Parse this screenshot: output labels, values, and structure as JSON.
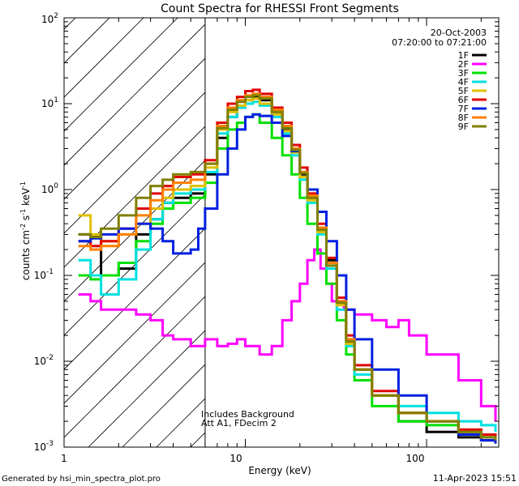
{
  "chart_data": {
    "type": "line",
    "title": "Count Spectra for RHESSI Front Segments",
    "xlabel": "Energy (keV)",
    "ylabel_main": "counts cm",
    "ylabel_sup1": "-2",
    "ylabel_s": " s",
    "ylabel_sup2": "-1",
    "ylabel_kev": " keV",
    "ylabel_sup3": "-1",
    "x_scale": "log",
    "y_scale": "log",
    "xlim": [
      1,
      250
    ],
    "ylim": [
      0.001,
      100
    ],
    "x_tick_labels": [
      "1",
      "10",
      "100"
    ],
    "y_tick_base": "10",
    "y_tick_exps": [
      "-3",
      "-2",
      "-1",
      "0",
      "1",
      "2"
    ],
    "date": "20-Oct-2003",
    "time_range": "07:20:00 to 07:21:00",
    "annotation_line1": "Includes Background",
    "annotation_line2": "Att A1, FDecim  2",
    "footer_left": "Generated by hsi_min_spectra_plot.pro",
    "footer_right": "11-Apr-2023 15:51",
    "attenuator_edge_kev": 6,
    "series": [
      {
        "name": "1F",
        "color": "#000000",
        "values": [
          [
            1.2,
            0.3
          ],
          [
            1.4,
            0.28
          ],
          [
            1.6,
            0.1
          ],
          [
            2,
            0.12
          ],
          [
            2.5,
            0.3
          ],
          [
            3,
            0.45
          ],
          [
            3.5,
            0.7
          ],
          [
            4,
            0.8
          ],
          [
            5,
            0.9
          ],
          [
            6,
            1.5
          ],
          [
            7,
            4
          ],
          [
            8,
            7
          ],
          [
            9,
            9
          ],
          [
            10,
            11
          ],
          [
            11,
            12
          ],
          [
            12,
            11
          ],
          [
            14,
            8
          ],
          [
            16,
            5
          ],
          [
            18,
            2.8
          ],
          [
            20,
            1.5
          ],
          [
            22,
            0.8
          ],
          [
            25,
            0.35
          ],
          [
            28,
            0.15
          ],
          [
            32,
            0.05
          ],
          [
            36,
            0.018
          ],
          [
            40,
            0.008
          ],
          [
            50,
            0.004
          ],
          [
            70,
            0.002
          ],
          [
            100,
            0.0015
          ],
          [
            150,
            0.0013
          ],
          [
            200,
            0.0012
          ],
          [
            240,
            0.0011
          ]
        ]
      },
      {
        "name": "2F",
        "color": "#ff00ff",
        "values": [
          [
            1.2,
            0.06
          ],
          [
            1.4,
            0.05
          ],
          [
            1.6,
            0.04
          ],
          [
            2,
            0.04
          ],
          [
            2.5,
            0.035
          ],
          [
            3,
            0.03
          ],
          [
            3.5,
            0.02
          ],
          [
            4,
            0.018
          ],
          [
            5,
            0.015
          ],
          [
            6,
            0.018
          ],
          [
            7,
            0.015
          ],
          [
            8,
            0.016
          ],
          [
            9,
            0.018
          ],
          [
            10,
            0.015
          ],
          [
            12,
            0.012
          ],
          [
            14,
            0.015
          ],
          [
            16,
            0.03
          ],
          [
            18,
            0.05
          ],
          [
            20,
            0.08
          ],
          [
            22,
            0.15
          ],
          [
            24,
            0.2
          ],
          [
            26,
            0.12
          ],
          [
            28,
            0.08
          ],
          [
            30,
            0.05
          ],
          [
            35,
            0.04
          ],
          [
            40,
            0.035
          ],
          [
            50,
            0.03
          ],
          [
            60,
            0.025
          ],
          [
            70,
            0.03
          ],
          [
            80,
            0.02
          ],
          [
            100,
            0.012
          ],
          [
            150,
            0.006
          ],
          [
            200,
            0.003
          ],
          [
            240,
            0.002
          ]
        ]
      },
      {
        "name": "3F",
        "color": "#00e000",
        "values": [
          [
            1.2,
            0.1
          ],
          [
            1.4,
            0.09
          ],
          [
            1.6,
            0.1
          ],
          [
            2,
            0.14
          ],
          [
            2.5,
            0.25
          ],
          [
            3,
            0.4
          ],
          [
            3.5,
            0.6
          ],
          [
            4,
            0.7
          ],
          [
            5,
            0.8
          ],
          [
            6,
            1.2
          ],
          [
            7,
            3
          ],
          [
            8,
            5
          ],
          [
            9,
            6
          ],
          [
            10,
            7
          ],
          [
            11,
            7.5
          ],
          [
            12,
            6
          ],
          [
            14,
            4
          ],
          [
            16,
            2.5
          ],
          [
            18,
            1.5
          ],
          [
            20,
            0.8
          ],
          [
            22,
            0.4
          ],
          [
            25,
            0.18
          ],
          [
            28,
            0.08
          ],
          [
            32,
            0.03
          ],
          [
            36,
            0.012
          ],
          [
            40,
            0.006
          ],
          [
            50,
            0.003
          ],
          [
            70,
            0.002
          ],
          [
            100,
            0.0018
          ],
          [
            150,
            0.0015
          ],
          [
            200,
            0.0013
          ],
          [
            240,
            0.0012
          ]
        ]
      },
      {
        "name": "4F",
        "color": "#00e0e0",
        "values": [
          [
            1.2,
            0.15
          ],
          [
            1.4,
            0.1
          ],
          [
            1.6,
            0.06
          ],
          [
            2,
            0.09
          ],
          [
            2.5,
            0.2
          ],
          [
            3,
            0.45
          ],
          [
            3.5,
            0.7
          ],
          [
            4,
            0.9
          ],
          [
            5,
            1.0
          ],
          [
            6,
            1.6
          ],
          [
            7,
            4.5
          ],
          [
            8,
            7
          ],
          [
            9,
            9
          ],
          [
            10,
            10
          ],
          [
            11,
            10.5
          ],
          [
            12,
            9.5
          ],
          [
            14,
            7
          ],
          [
            16,
            4.5
          ],
          [
            18,
            2.5
          ],
          [
            20,
            1.3
          ],
          [
            22,
            0.7
          ],
          [
            25,
            0.3
          ],
          [
            28,
            0.12
          ],
          [
            32,
            0.04
          ],
          [
            36,
            0.015
          ],
          [
            40,
            0.007
          ],
          [
            50,
            0.004
          ],
          [
            70,
            0.003
          ],
          [
            100,
            0.0025
          ],
          [
            150,
            0.002
          ],
          [
            200,
            0.0018
          ],
          [
            240,
            0.0015
          ]
        ]
      },
      {
        "name": "5F",
        "color": "#e0c000",
        "values": [
          [
            1.2,
            0.5
          ],
          [
            1.4,
            0.3
          ],
          [
            1.6,
            0.25
          ],
          [
            2,
            0.3
          ],
          [
            2.5,
            0.4
          ],
          [
            3,
            0.6
          ],
          [
            3.5,
            0.8
          ],
          [
            4,
            1.0
          ],
          [
            5,
            1.1
          ],
          [
            6,
            1.8
          ],
          [
            7,
            5
          ],
          [
            8,
            8
          ],
          [
            9,
            9.5
          ],
          [
            10,
            11
          ],
          [
            11,
            11.5
          ],
          [
            12,
            10
          ],
          [
            14,
            7.5
          ],
          [
            16,
            4.8
          ],
          [
            18,
            2.7
          ],
          [
            20,
            1.4
          ],
          [
            22,
            0.75
          ],
          [
            25,
            0.32
          ],
          [
            28,
            0.13
          ],
          [
            32,
            0.045
          ],
          [
            36,
            0.016
          ],
          [
            40,
            0.008
          ],
          [
            50,
            0.004
          ],
          [
            70,
            0.0025
          ],
          [
            100,
            0.002
          ],
          [
            150,
            0.0016
          ],
          [
            200,
            0.0014
          ],
          [
            240,
            0.0012
          ]
        ]
      },
      {
        "name": "6F",
        "color": "#e00000",
        "values": [
          [
            1.2,
            0.25
          ],
          [
            1.4,
            0.22
          ],
          [
            1.6,
            0.25
          ],
          [
            2,
            0.35
          ],
          [
            2.5,
            0.6
          ],
          [
            3,
            0.9
          ],
          [
            3.5,
            1.1
          ],
          [
            4,
            1.4
          ],
          [
            5,
            1.5
          ],
          [
            6,
            2.2
          ],
          [
            7,
            6
          ],
          [
            8,
            10
          ],
          [
            9,
            12
          ],
          [
            10,
            14
          ],
          [
            11,
            14.5
          ],
          [
            12,
            13
          ],
          [
            14,
            9
          ],
          [
            16,
            6
          ],
          [
            18,
            3.3
          ],
          [
            20,
            1.8
          ],
          [
            22,
            0.9
          ],
          [
            25,
            0.4
          ],
          [
            28,
            0.16
          ],
          [
            32,
            0.055
          ],
          [
            36,
            0.02
          ],
          [
            40,
            0.009
          ],
          [
            50,
            0.0045
          ],
          [
            70,
            0.0025
          ],
          [
            100,
            0.002
          ],
          [
            150,
            0.0016
          ],
          [
            200,
            0.0014
          ],
          [
            240,
            0.0012
          ]
        ]
      },
      {
        "name": "7F",
        "color": "#0020e0",
        "values": [
          [
            1.2,
            0.25
          ],
          [
            1.4,
            0.27
          ],
          [
            1.6,
            0.3
          ],
          [
            2,
            0.35
          ],
          [
            2.5,
            0.4
          ],
          [
            3,
            0.35
          ],
          [
            3.5,
            0.25
          ],
          [
            4,
            0.18
          ],
          [
            5,
            0.2
          ],
          [
            5.5,
            0.35
          ],
          [
            6,
            0.6
          ],
          [
            7,
            1.5
          ],
          [
            8,
            3
          ],
          [
            9,
            5
          ],
          [
            10,
            7
          ],
          [
            11,
            7.5
          ],
          [
            12,
            7.2
          ],
          [
            14,
            6
          ],
          [
            16,
            4.2
          ],
          [
            18,
            2.8
          ],
          [
            20,
            1.6
          ],
          [
            22,
            1.0
          ],
          [
            25,
            0.55
          ],
          [
            28,
            0.25
          ],
          [
            32,
            0.1
          ],
          [
            36,
            0.04
          ],
          [
            40,
            0.018
          ],
          [
            50,
            0.008
          ],
          [
            70,
            0.004
          ],
          [
            100,
            0.002
          ],
          [
            150,
            0.0014
          ],
          [
            200,
            0.0012
          ],
          [
            240,
            0.0011
          ]
        ]
      },
      {
        "name": "8F",
        "color": "#ff8000",
        "values": [
          [
            1.2,
            0.22
          ],
          [
            1.4,
            0.2
          ],
          [
            1.6,
            0.22
          ],
          [
            2,
            0.3
          ],
          [
            2.5,
            0.5
          ],
          [
            3,
            0.75
          ],
          [
            3.5,
            1.0
          ],
          [
            4,
            1.2
          ],
          [
            5,
            1.3
          ],
          [
            6,
            2.0
          ],
          [
            7,
            5.5
          ],
          [
            8,
            9
          ],
          [
            9,
            11
          ],
          [
            10,
            12.5
          ],
          [
            11,
            13
          ],
          [
            12,
            12
          ],
          [
            14,
            8.5
          ],
          [
            16,
            5.5
          ],
          [
            18,
            3
          ],
          [
            20,
            1.6
          ],
          [
            22,
            0.85
          ],
          [
            25,
            0.36
          ],
          [
            28,
            0.14
          ],
          [
            32,
            0.05
          ],
          [
            36,
            0.018
          ],
          [
            40,
            0.008
          ],
          [
            50,
            0.004
          ],
          [
            70,
            0.0025
          ],
          [
            100,
            0.002
          ],
          [
            150,
            0.0015
          ],
          [
            200,
            0.0013
          ],
          [
            240,
            0.0012
          ]
        ]
      },
      {
        "name": "9F",
        "color": "#808000",
        "values": [
          [
            1.2,
            0.3
          ],
          [
            1.4,
            0.28
          ],
          [
            1.6,
            0.35
          ],
          [
            2,
            0.5
          ],
          [
            2.5,
            0.8
          ],
          [
            3,
            1.1
          ],
          [
            3.5,
            1.3
          ],
          [
            4,
            1.5
          ],
          [
            5,
            1.6
          ],
          [
            6,
            2.0
          ],
          [
            7,
            5.2
          ],
          [
            8,
            8.5
          ],
          [
            9,
            10.5
          ],
          [
            10,
            12
          ],
          [
            11,
            12.5
          ],
          [
            12,
            11.5
          ],
          [
            14,
            8
          ],
          [
            16,
            5.2
          ],
          [
            18,
            2.9
          ],
          [
            20,
            1.55
          ],
          [
            22,
            0.8
          ],
          [
            25,
            0.34
          ],
          [
            28,
            0.13
          ],
          [
            32,
            0.048
          ],
          [
            36,
            0.017
          ],
          [
            40,
            0.008
          ],
          [
            50,
            0.004
          ],
          [
            70,
            0.0025
          ],
          [
            100,
            0.002
          ],
          [
            150,
            0.0015
          ],
          [
            200,
            0.0013
          ],
          [
            240,
            0.0012
          ]
        ]
      }
    ]
  }
}
